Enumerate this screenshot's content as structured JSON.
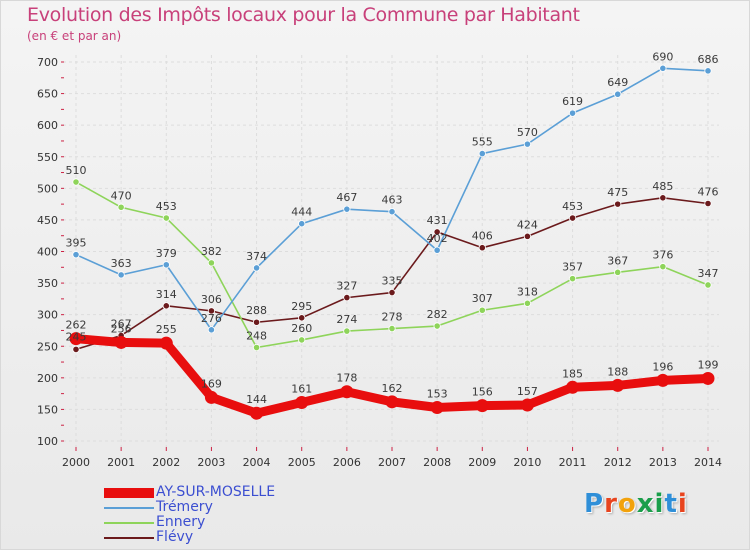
{
  "header": {
    "title": "Evolution des Impôts locaux pour la Commune par Habitant",
    "subtitle": "(en € et par an)"
  },
  "logo": {
    "text": "Proxiti",
    "letter_colors": [
      "#2f8fd8",
      "#e8441e",
      "#f2a20c",
      "#1a9e4a",
      "#1a9e4a",
      "#2f8fd8",
      "#e8441e"
    ]
  },
  "chart_data": {
    "type": "line",
    "title": "Evolution des Impôts locaux pour la Commune par Habitant",
    "subtitle": "(en € et par an)",
    "xlabel": "",
    "ylabel": "",
    "x": [
      "2000",
      "2001",
      "2002",
      "2003",
      "2004",
      "2005",
      "2006",
      "2007",
      "2008",
      "2009",
      "2010",
      "2011",
      "2012",
      "2013",
      "2014"
    ],
    "ylim": [
      100,
      700
    ],
    "yticks": [
      100,
      150,
      200,
      250,
      300,
      350,
      400,
      450,
      500,
      550,
      600,
      650,
      700
    ],
    "grid": true,
    "legend_position": "bottom-left",
    "series": [
      {
        "name": "Flévy",
        "color": "#6b1a1c",
        "values": [
          245,
          267,
          314,
          306,
          288,
          295,
          327,
          335,
          431,
          406,
          424,
          453,
          475,
          485,
          476
        ],
        "labels": [
          "",
          "267",
          "314",
          "306",
          "288",
          "295",
          "327",
          "335",
          "431",
          "406",
          "424",
          "453",
          "475",
          "485",
          "476"
        ]
      },
      {
        "name": "Ennery",
        "color": "#8ed45a",
        "values": [
          510,
          470,
          453,
          382,
          248,
          260,
          274,
          278,
          282,
          307,
          318,
          357,
          367,
          376,
          347
        ],
        "labels": [
          "510",
          "470",
          "453",
          "382",
          "248",
          "260",
          "274",
          "278",
          "282",
          "307",
          "318",
          "357",
          "367",
          "376",
          "347"
        ]
      },
      {
        "name": "Trémery",
        "color": "#5b9fd6",
        "values": [
          395,
          363,
          379,
          276,
          374,
          444,
          467,
          463,
          402,
          555,
          570,
          619,
          649,
          690,
          686
        ],
        "labels": [
          "395",
          "363",
          "379",
          "276",
          "374",
          "444",
          "467",
          "463",
          "402",
          "555",
          "570",
          "619",
          "649",
          "690",
          "686"
        ]
      },
      {
        "name": "AY-SUR-MOSELLE",
        "color": "#e80e0e",
        "values": [
          262,
          256,
          255,
          169,
          144,
          161,
          178,
          162,
          153,
          156,
          157,
          185,
          188,
          196,
          199
        ],
        "labels": [
          "262",
          "256",
          "255",
          "169",
          "144",
          "161",
          "178",
          "162",
          "153",
          "156",
          "157",
          "185",
          "188",
          "196",
          "199"
        ]
      }
    ],
    "extra_labels": [
      "245"
    ]
  },
  "legend": {
    "items": [
      {
        "label": "AY-SUR-MOSELLE",
        "color": "#e80e0e"
      },
      {
        "label": "Trémery",
        "color": "#5b9fd6"
      },
      {
        "label": "Ennery",
        "color": "#8ed45a"
      },
      {
        "label": "Flévy",
        "color": "#6b1a1c"
      }
    ]
  }
}
